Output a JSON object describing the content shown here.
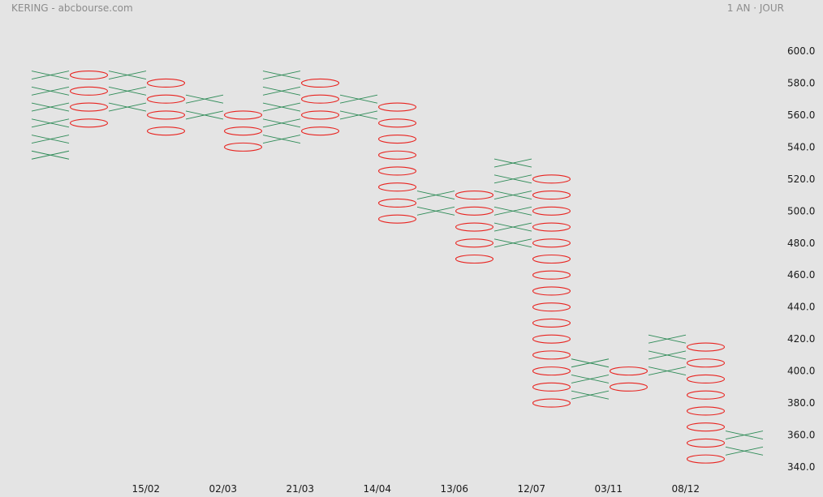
{
  "header": {
    "title": "KERING - abcbourse.com",
    "period": "1 AN · JOUR"
  },
  "chart_data": {
    "type": "point-and-figure",
    "box_size": 10,
    "y_range": [
      340,
      600
    ],
    "y_ticks": [
      {
        "value": 600,
        "label": "600.0"
      },
      {
        "value": 580,
        "label": "580.0"
      },
      {
        "value": 560,
        "label": "560.0"
      },
      {
        "value": 540,
        "label": "540.0"
      },
      {
        "value": 520,
        "label": "520.0"
      },
      {
        "value": 500,
        "label": "500.0"
      },
      {
        "value": 480,
        "label": "480.0"
      },
      {
        "value": 460,
        "label": "460.0"
      },
      {
        "value": 440,
        "label": "440.0"
      },
      {
        "value": 420,
        "label": "420.0"
      },
      {
        "value": 400,
        "label": "400.0"
      },
      {
        "value": 380,
        "label": "380.0"
      },
      {
        "value": 360,
        "label": "360.0"
      },
      {
        "value": 340,
        "label": "340.0"
      }
    ],
    "x_ticks": [
      {
        "after_column": 3,
        "label": "15/02"
      },
      {
        "after_column": 5,
        "label": "02/03"
      },
      {
        "after_column": 7,
        "label": "21/03"
      },
      {
        "after_column": 9,
        "label": "14/04"
      },
      {
        "after_column": 11,
        "label": "13/06"
      },
      {
        "after_column": 13,
        "label": "12/07"
      },
      {
        "after_column": 15,
        "label": "03/11"
      },
      {
        "after_column": 17,
        "label": "08/12"
      }
    ],
    "columns": [
      {
        "type": "X",
        "low": 535,
        "high": 590
      },
      {
        "type": "O",
        "low": 555,
        "high": 585
      },
      {
        "type": "X",
        "low": 565,
        "high": 590
      },
      {
        "type": "O",
        "low": 550,
        "high": 585
      },
      {
        "type": "X",
        "low": 560,
        "high": 570
      },
      {
        "type": "O",
        "low": 540,
        "high": 565
      },
      {
        "type": "X",
        "low": 545,
        "high": 590
      },
      {
        "type": "O",
        "low": 550,
        "high": 585
      },
      {
        "type": "X",
        "low": 560,
        "high": 575
      },
      {
        "type": "O",
        "low": 495,
        "high": 570
      },
      {
        "type": "X",
        "low": 500,
        "high": 515
      },
      {
        "type": "O",
        "low": 470,
        "high": 510
      },
      {
        "type": "X",
        "low": 480,
        "high": 535
      },
      {
        "type": "O",
        "low": 380,
        "high": 525
      },
      {
        "type": "X",
        "low": 385,
        "high": 405
      },
      {
        "type": "O",
        "low": 390,
        "high": 400
      },
      {
        "type": "X",
        "low": 400,
        "high": 420
      },
      {
        "type": "O",
        "low": 345,
        "high": 415
      },
      {
        "type": "X",
        "low": 350,
        "high": 360
      }
    ],
    "colors": {
      "X": "#2e8b57",
      "O": "#e8231f"
    }
  }
}
